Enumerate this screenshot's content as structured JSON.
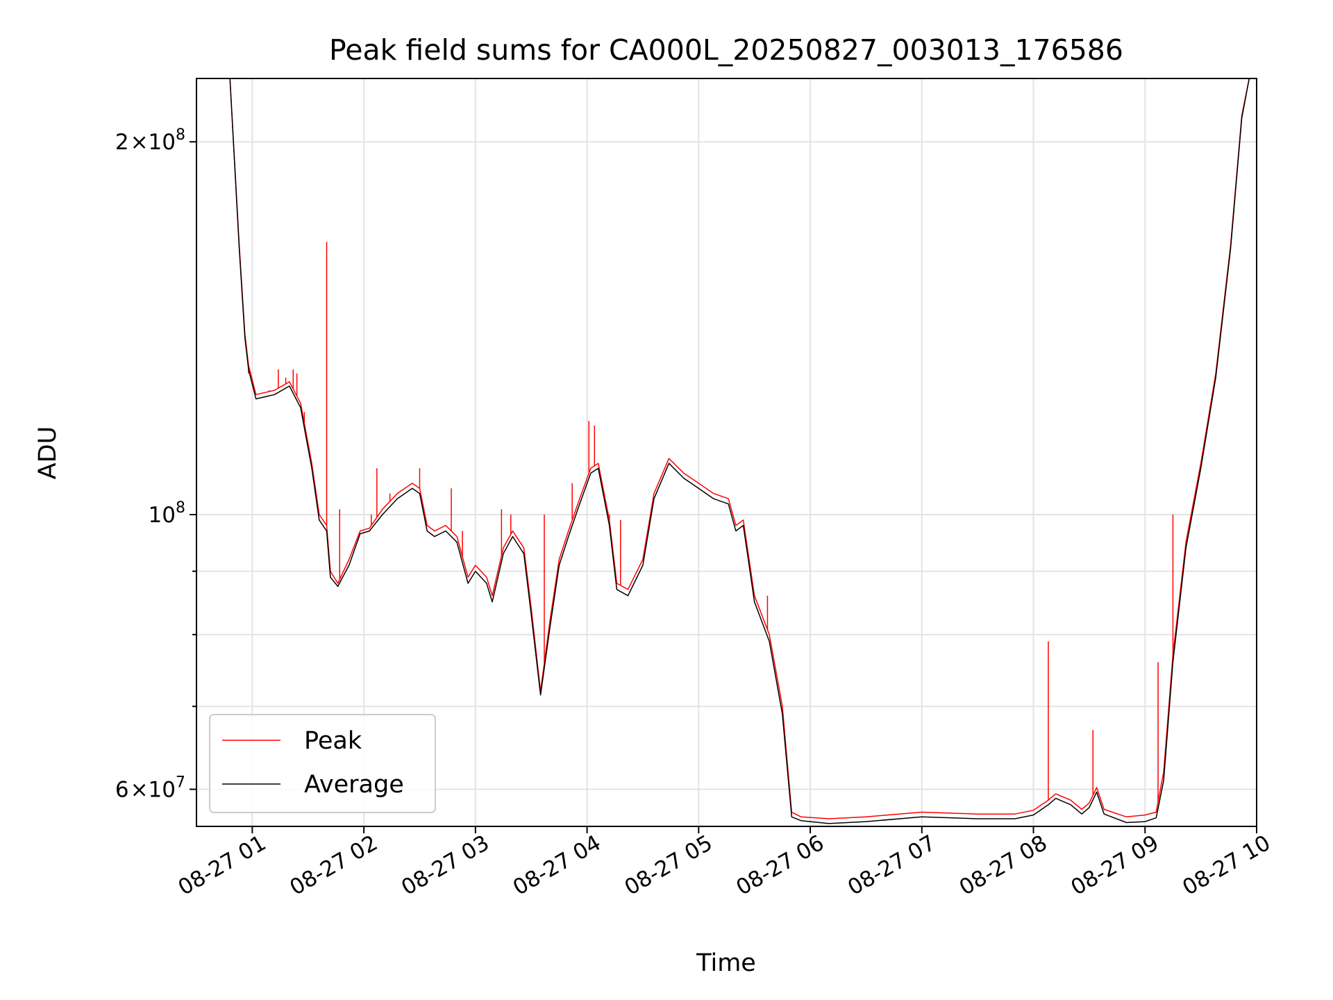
{
  "chart_data": {
    "type": "line",
    "title": "Peak field sums for CA000L_20250827_003013_176586",
    "xlabel": "Time",
    "ylabel": "ADU",
    "yscale": "log",
    "xlim": [
      "2025-08-27 00:30",
      "2025-08-27 10:00"
    ],
    "ylim": [
      56000000,
      225000000
    ],
    "grid": true,
    "legend": "lower-left",
    "x_ticks": [
      {
        "value": "2025-08-27 01:00",
        "label": "08-27 01"
      },
      {
        "value": "2025-08-27 02:00",
        "label": "08-27 02"
      },
      {
        "value": "2025-08-27 03:00",
        "label": "08-27 03"
      },
      {
        "value": "2025-08-27 04:00",
        "label": "08-27 04"
      },
      {
        "value": "2025-08-27 05:00",
        "label": "08-27 05"
      },
      {
        "value": "2025-08-27 06:00",
        "label": "08-27 06"
      },
      {
        "value": "2025-08-27 07:00",
        "label": "08-27 07"
      },
      {
        "value": "2025-08-27 08:00",
        "label": "08-27 08"
      },
      {
        "value": "2025-08-27 09:00",
        "label": "08-27 09"
      },
      {
        "value": "2025-08-27 10:00",
        "label": "08-27 10"
      }
    ],
    "y_major_ticks": [
      {
        "value": 60000000,
        "mantissa": "6",
        "times": "×",
        "base": "10",
        "exp": "7"
      },
      {
        "value": 100000000,
        "mantissa": "",
        "times": "",
        "base": "10",
        "exp": "8"
      },
      {
        "value": 200000000,
        "mantissa": "2",
        "times": "×",
        "base": "10",
        "exp": "8"
      }
    ],
    "y_minor_ticks": [
      70000000,
      80000000,
      90000000
    ],
    "series": [
      {
        "name": "Peak",
        "color": "#ff0000",
        "points": [
          [
            "2025-08-27 00:48",
            225000000
          ],
          [
            "2025-08-27 00:53",
            165000000
          ],
          [
            "2025-08-27 00:56",
            140000000
          ],
          [
            "2025-08-27 00:58",
            132000000
          ],
          [
            "2025-08-27 01:02",
            125000000
          ],
          [
            "2025-08-27 01:12",
            126000000
          ],
          [
            "2025-08-27 01:20",
            128000000
          ],
          [
            "2025-08-27 01:26",
            123000000
          ],
          [
            "2025-08-27 01:32",
            110000000
          ],
          [
            "2025-08-27 01:36",
            100000000
          ],
          [
            "2025-08-27 01:40",
            98000000
          ],
          [
            "2025-08-27 01:42",
            90000000
          ],
          [
            "2025-08-27 01:46",
            88000000
          ],
          [
            "2025-08-27 01:52",
            92000000
          ],
          [
            "2025-08-27 01:58",
            97000000
          ],
          [
            "2025-08-27 02:03",
            97500000
          ],
          [
            "2025-08-27 02:10",
            101000000
          ],
          [
            "2025-08-27 02:18",
            104000000
          ],
          [
            "2025-08-27 02:26",
            106000000
          ],
          [
            "2025-08-27 02:30",
            105000000
          ],
          [
            "2025-08-27 02:34",
            98000000
          ],
          [
            "2025-08-27 02:38",
            97000000
          ],
          [
            "2025-08-27 02:44",
            98000000
          ],
          [
            "2025-08-27 02:50",
            96000000
          ],
          [
            "2025-08-27 02:56",
            89000000
          ],
          [
            "2025-08-27 03:00",
            91000000
          ],
          [
            "2025-08-27 03:06",
            89000000
          ],
          [
            "2025-08-27 03:09",
            86000000
          ],
          [
            "2025-08-27 03:15",
            94000000
          ],
          [
            "2025-08-27 03:20",
            97000000
          ],
          [
            "2025-08-27 03:26",
            94000000
          ],
          [
            "2025-08-27 03:30",
            84000000
          ],
          [
            "2025-08-27 03:35",
            72000000
          ],
          [
            "2025-08-27 03:40",
            82000000
          ],
          [
            "2025-08-27 03:45",
            92000000
          ],
          [
            "2025-08-27 03:50",
            97000000
          ],
          [
            "2025-08-27 03:56",
            103000000
          ],
          [
            "2025-08-27 04:02",
            109000000
          ],
          [
            "2025-08-27 04:06",
            110000000
          ],
          [
            "2025-08-27 04:12",
            99000000
          ],
          [
            "2025-08-27 04:16",
            88000000
          ],
          [
            "2025-08-27 04:22",
            87000000
          ],
          [
            "2025-08-27 04:30",
            92000000
          ],
          [
            "2025-08-27 04:36",
            104000000
          ],
          [
            "2025-08-27 04:44",
            111000000
          ],
          [
            "2025-08-27 04:52",
            108000000
          ],
          [
            "2025-08-27 05:00",
            106000000
          ],
          [
            "2025-08-27 05:08",
            104000000
          ],
          [
            "2025-08-27 05:16",
            103000000
          ],
          [
            "2025-08-27 05:20",
            98000000
          ],
          [
            "2025-08-27 05:24",
            99000000
          ],
          [
            "2025-08-27 05:30",
            86000000
          ],
          [
            "2025-08-27 05:38",
            80000000
          ],
          [
            "2025-08-27 05:45",
            70000000
          ],
          [
            "2025-08-27 05:50",
            57500000
          ],
          [
            "2025-08-27 05:55",
            57000000
          ],
          [
            "2025-08-27 06:10",
            56800000
          ],
          [
            "2025-08-27 06:30",
            57000000
          ],
          [
            "2025-08-27 07:00",
            57500000
          ],
          [
            "2025-08-27 07:30",
            57300000
          ],
          [
            "2025-08-27 07:50",
            57300000
          ],
          [
            "2025-08-27 08:00",
            57700000
          ],
          [
            "2025-08-27 08:08",
            58800000
          ],
          [
            "2025-08-27 08:12",
            59500000
          ],
          [
            "2025-08-27 08:20",
            58800000
          ],
          [
            "2025-08-27 08:26",
            57800000
          ],
          [
            "2025-08-27 08:30",
            58500000
          ],
          [
            "2025-08-27 08:34",
            60200000
          ],
          [
            "2025-08-27 08:38",
            57800000
          ],
          [
            "2025-08-27 08:50",
            57000000
          ],
          [
            "2025-08-27 09:00",
            57200000
          ],
          [
            "2025-08-27 09:06",
            57500000
          ],
          [
            "2025-08-27 09:10",
            62000000
          ],
          [
            "2025-08-27 09:15",
            77000000
          ],
          [
            "2025-08-27 09:22",
            95000000
          ],
          [
            "2025-08-27 09:30",
            110000000
          ],
          [
            "2025-08-27 09:38",
            130000000
          ],
          [
            "2025-08-27 09:46",
            165000000
          ],
          [
            "2025-08-27 09:52",
            210000000
          ],
          [
            "2025-08-27 09:56",
            225000000
          ]
        ],
        "spikes": [
          [
            "2025-08-27 00:58",
            130000000
          ],
          [
            "2025-08-27 01:09",
            126000000
          ],
          [
            "2025-08-27 01:14",
            131000000
          ],
          [
            "2025-08-27 01:18",
            129000000
          ],
          [
            "2025-08-27 01:22",
            131000000
          ],
          [
            "2025-08-27 01:24",
            130000000
          ],
          [
            "2025-08-27 01:28",
            121000000
          ],
          [
            "2025-08-27 01:40",
            166000000
          ],
          [
            "2025-08-27 01:47",
            101000000
          ],
          [
            "2025-08-27 02:04",
            100000000
          ],
          [
            "2025-08-27 02:07",
            109000000
          ],
          [
            "2025-08-27 02:14",
            104000000
          ],
          [
            "2025-08-27 02:30",
            109000000
          ],
          [
            "2025-08-27 02:47",
            105000000
          ],
          [
            "2025-08-27 02:53",
            97000000
          ],
          [
            "2025-08-27 03:14",
            101000000
          ],
          [
            "2025-08-27 03:19",
            100000000
          ],
          [
            "2025-08-27 03:37",
            100000000
          ],
          [
            "2025-08-27 03:52",
            106000000
          ],
          [
            "2025-08-27 04:01",
            119000000
          ],
          [
            "2025-08-27 04:04",
            118000000
          ],
          [
            "2025-08-27 04:12",
            100000000
          ],
          [
            "2025-08-27 04:18",
            99000000
          ],
          [
            "2025-08-27 05:37",
            86000000
          ],
          [
            "2025-08-27 08:08",
            79000000
          ],
          [
            "2025-08-27 08:32",
            67000000
          ],
          [
            "2025-08-27 09:07",
            76000000
          ],
          [
            "2025-08-27 09:15",
            100000000
          ]
        ]
      },
      {
        "name": "Average",
        "color": "#000000",
        "points": [
          [
            "2025-08-27 00:48",
            225000000
          ],
          [
            "2025-08-27 00:53",
            164000000
          ],
          [
            "2025-08-27 00:56",
            139000000
          ],
          [
            "2025-08-27 00:58",
            131000000
          ],
          [
            "2025-08-27 01:02",
            124000000
          ],
          [
            "2025-08-27 01:12",
            125000000
          ],
          [
            "2025-08-27 01:20",
            127000000
          ],
          [
            "2025-08-27 01:26",
            122000000
          ],
          [
            "2025-08-27 01:32",
            109000000
          ],
          [
            "2025-08-27 01:36",
            99000000
          ],
          [
            "2025-08-27 01:40",
            97000000
          ],
          [
            "2025-08-27 01:42",
            89000000
          ],
          [
            "2025-08-27 01:46",
            87500000
          ],
          [
            "2025-08-27 01:52",
            91000000
          ],
          [
            "2025-08-27 01:58",
            96500000
          ],
          [
            "2025-08-27 02:03",
            97000000
          ],
          [
            "2025-08-27 02:10",
            100000000
          ],
          [
            "2025-08-27 02:18",
            103000000
          ],
          [
            "2025-08-27 02:26",
            105000000
          ],
          [
            "2025-08-27 02:30",
            104000000
          ],
          [
            "2025-08-27 02:34",
            97000000
          ],
          [
            "2025-08-27 02:38",
            96000000
          ],
          [
            "2025-08-27 02:44",
            97000000
          ],
          [
            "2025-08-27 02:50",
            95000000
          ],
          [
            "2025-08-27 02:56",
            88000000
          ],
          [
            "2025-08-27 03:00",
            90000000
          ],
          [
            "2025-08-27 03:06",
            88000000
          ],
          [
            "2025-08-27 03:09",
            85000000
          ],
          [
            "2025-08-27 03:15",
            93000000
          ],
          [
            "2025-08-27 03:20",
            96000000
          ],
          [
            "2025-08-27 03:26",
            93000000
          ],
          [
            "2025-08-27 03:30",
            83000000
          ],
          [
            "2025-08-27 03:35",
            71500000
          ],
          [
            "2025-08-27 03:40",
            81000000
          ],
          [
            "2025-08-27 03:45",
            91000000
          ],
          [
            "2025-08-27 03:50",
            96000000
          ],
          [
            "2025-08-27 03:56",
            102000000
          ],
          [
            "2025-08-27 04:02",
            108000000
          ],
          [
            "2025-08-27 04:06",
            109000000
          ],
          [
            "2025-08-27 04:12",
            98000000
          ],
          [
            "2025-08-27 04:16",
            87000000
          ],
          [
            "2025-08-27 04:22",
            86000000
          ],
          [
            "2025-08-27 04:30",
            91000000
          ],
          [
            "2025-08-27 04:36",
            103000000
          ],
          [
            "2025-08-27 04:44",
            110000000
          ],
          [
            "2025-08-27 04:52",
            107000000
          ],
          [
            "2025-08-27 05:00",
            105000000
          ],
          [
            "2025-08-27 05:08",
            103000000
          ],
          [
            "2025-08-27 05:16",
            102000000
          ],
          [
            "2025-08-27 05:20",
            97000000
          ],
          [
            "2025-08-27 05:24",
            98000000
          ],
          [
            "2025-08-27 05:30",
            85000000
          ],
          [
            "2025-08-27 05:38",
            79000000
          ],
          [
            "2025-08-27 05:45",
            69000000
          ],
          [
            "2025-08-27 05:50",
            57000000
          ],
          [
            "2025-08-27 05:55",
            56600000
          ],
          [
            "2025-08-27 06:10",
            56300000
          ],
          [
            "2025-08-27 06:30",
            56500000
          ],
          [
            "2025-08-27 07:00",
            57000000
          ],
          [
            "2025-08-27 07:30",
            56800000
          ],
          [
            "2025-08-27 07:50",
            56800000
          ],
          [
            "2025-08-27 08:00",
            57200000
          ],
          [
            "2025-08-27 08:08",
            58300000
          ],
          [
            "2025-08-27 08:12",
            59000000
          ],
          [
            "2025-08-27 08:20",
            58300000
          ],
          [
            "2025-08-27 08:26",
            57300000
          ],
          [
            "2025-08-27 08:30",
            58000000
          ],
          [
            "2025-08-27 08:34",
            59700000
          ],
          [
            "2025-08-27 08:38",
            57300000
          ],
          [
            "2025-08-27 08:50",
            56400000
          ],
          [
            "2025-08-27 09:00",
            56500000
          ],
          [
            "2025-08-27 09:06",
            56900000
          ],
          [
            "2025-08-27 09:10",
            61000000
          ],
          [
            "2025-08-27 09:15",
            76000000
          ],
          [
            "2025-08-27 09:22",
            94000000
          ],
          [
            "2025-08-27 09:30",
            109000000
          ],
          [
            "2025-08-27 09:38",
            129000000
          ],
          [
            "2025-08-27 09:46",
            164000000
          ],
          [
            "2025-08-27 09:52",
            209000000
          ],
          [
            "2025-08-27 09:56",
            225000000
          ]
        ]
      }
    ]
  }
}
